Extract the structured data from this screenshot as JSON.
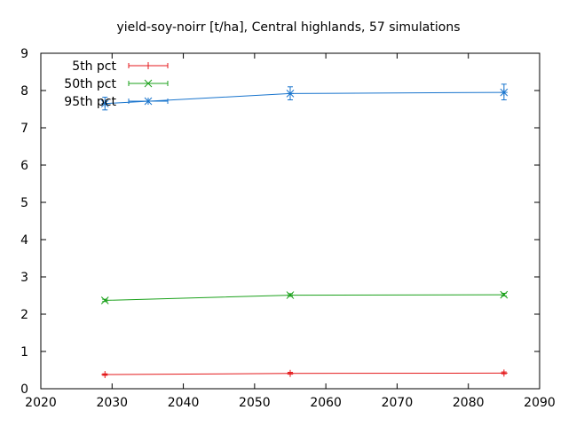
{
  "chart_data": {
    "type": "line",
    "title": "yield-soy-noirr [t/ha], Central highlands, 57 simulations",
    "xlabel": "",
    "ylabel": "",
    "xlim": [
      2020,
      2090
    ],
    "ylim": [
      0,
      9
    ],
    "xticks": [
      2020,
      2030,
      2040,
      2050,
      2060,
      2070,
      2080,
      2090
    ],
    "yticks": [
      0,
      1,
      2,
      3,
      4,
      5,
      6,
      7,
      8,
      9
    ],
    "grid": false,
    "legend_position": "top-left",
    "x": [
      2029,
      2055,
      2085
    ],
    "series": [
      {
        "name": "5th pct",
        "color": "#e41a1c",
        "marker": "plus",
        "values": [
          0.38,
          0.41,
          0.42
        ],
        "err_low": [
          0.36,
          0.39,
          0.4
        ],
        "err_high": [
          0.4,
          0.44,
          0.45
        ]
      },
      {
        "name": "50th pct",
        "color": "#1ba11b",
        "marker": "cross",
        "values": [
          2.37,
          2.51,
          2.52
        ],
        "err_low": [
          2.34,
          2.48,
          2.49
        ],
        "err_high": [
          2.4,
          2.55,
          2.56
        ]
      },
      {
        "name": "95th pct",
        "color": "#1874cd",
        "marker": "star",
        "values": [
          7.65,
          7.92,
          7.95
        ],
        "err_low": [
          7.48,
          7.75,
          7.75
        ],
        "err_high": [
          7.82,
          8.1,
          8.17
        ]
      }
    ]
  }
}
